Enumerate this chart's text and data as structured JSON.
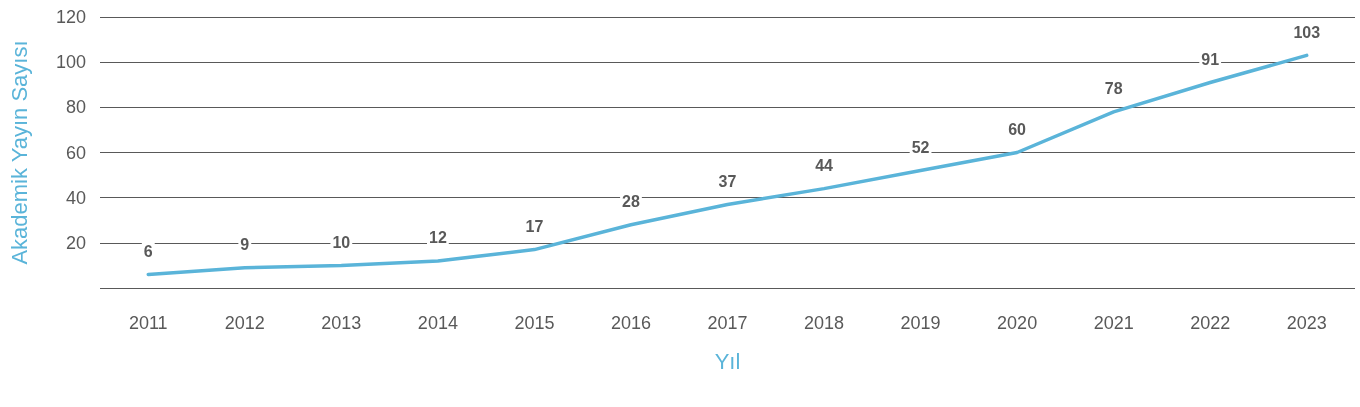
{
  "chart_data": {
    "type": "line",
    "xlabel": "Yıl",
    "ylabel": "Akademik Yayın Sayısı",
    "categories": [
      "2011",
      "2012",
      "2013",
      "2014",
      "2015",
      "2016",
      "2017",
      "2018",
      "2019",
      "2020",
      "2021",
      "2022",
      "2023"
    ],
    "series": [
      {
        "color": "#5ab4d9",
        "values": [
          6,
          9,
          10,
          12,
          17,
          28,
          37,
          44,
          52,
          60,
          78,
          91,
          103
        ]
      }
    ],
    "ylim": [
      0,
      120
    ],
    "yticks": [
      {
        "value": 0,
        "label": null
      },
      20,
      40,
      60,
      80,
      100,
      120
    ],
    "grid": "y",
    "data_labels": true,
    "marker": "none",
    "line_style": "solid"
  }
}
